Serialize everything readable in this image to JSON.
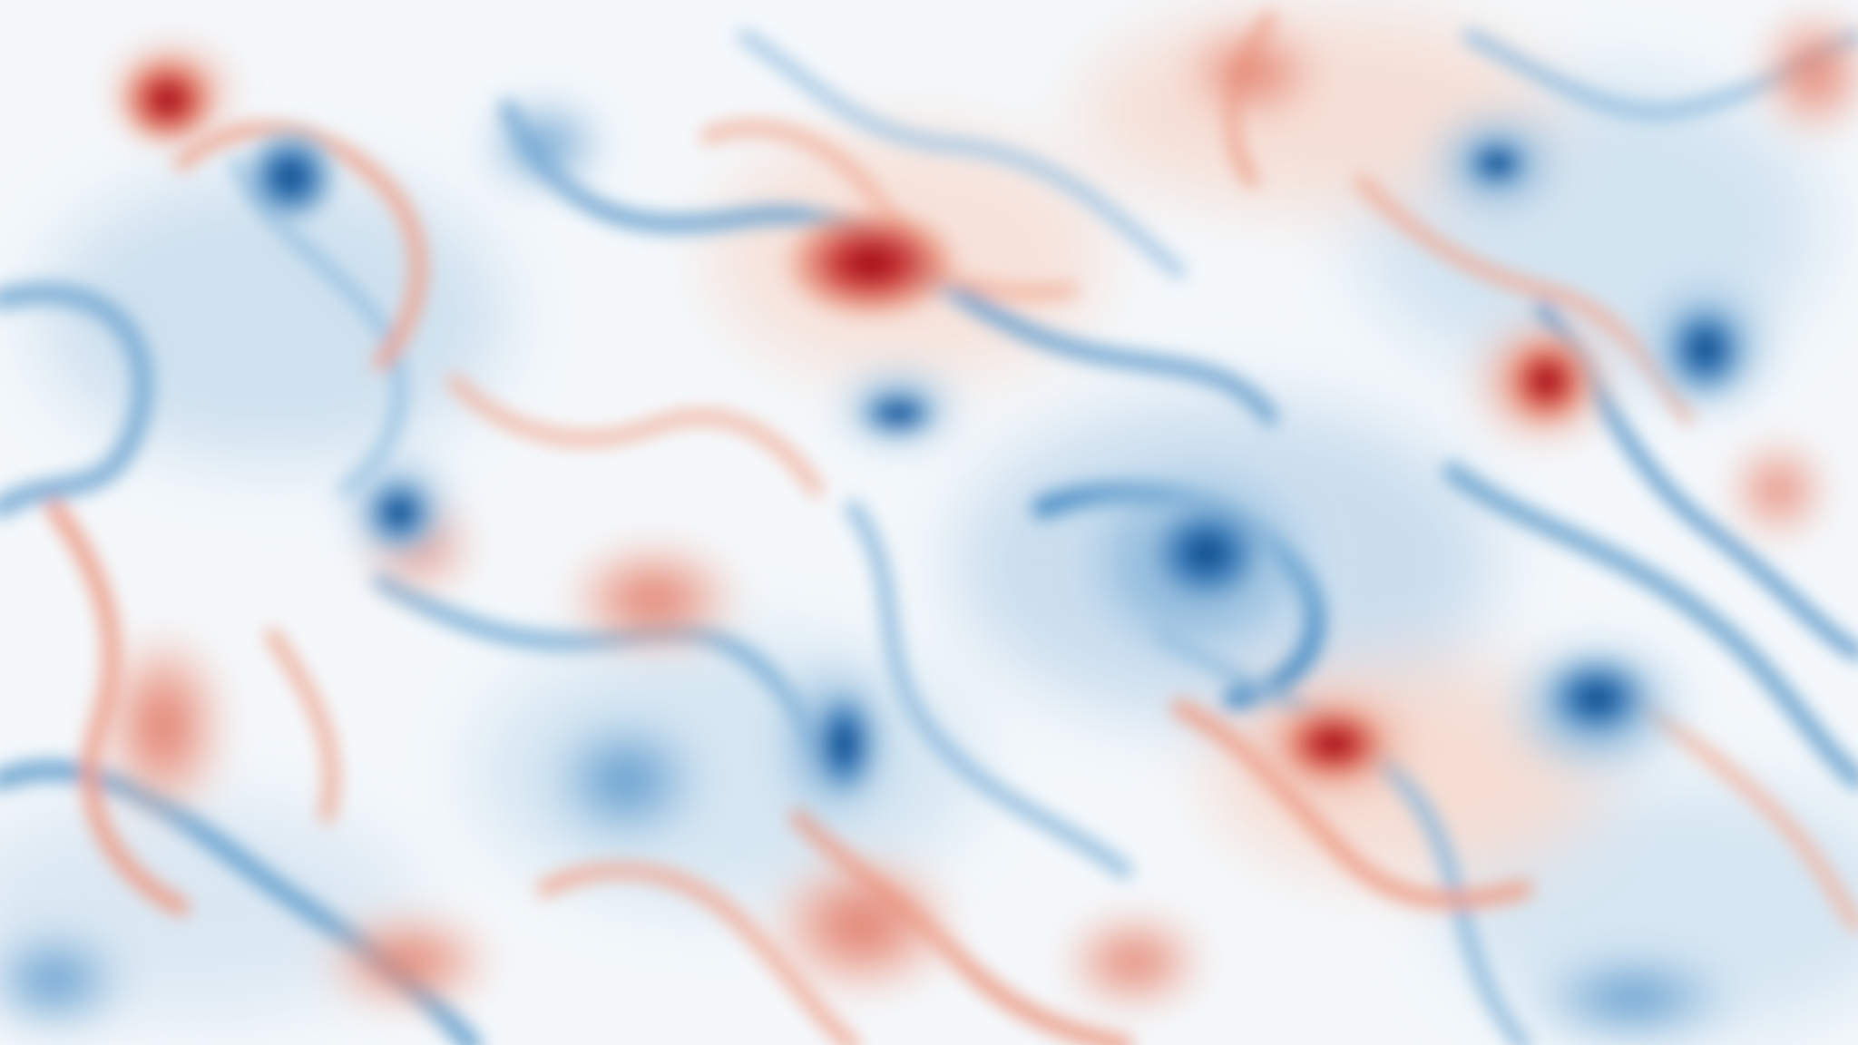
{
  "image": {
    "subject": "turbulent-vorticity-field",
    "colormap": {
      "positive": "#b2182b",
      "positive_mid": "#e48066",
      "neutral": "#f4f8fb",
      "negative_mid": "#6fa3cc",
      "negative": "#08519c"
    }
  }
}
